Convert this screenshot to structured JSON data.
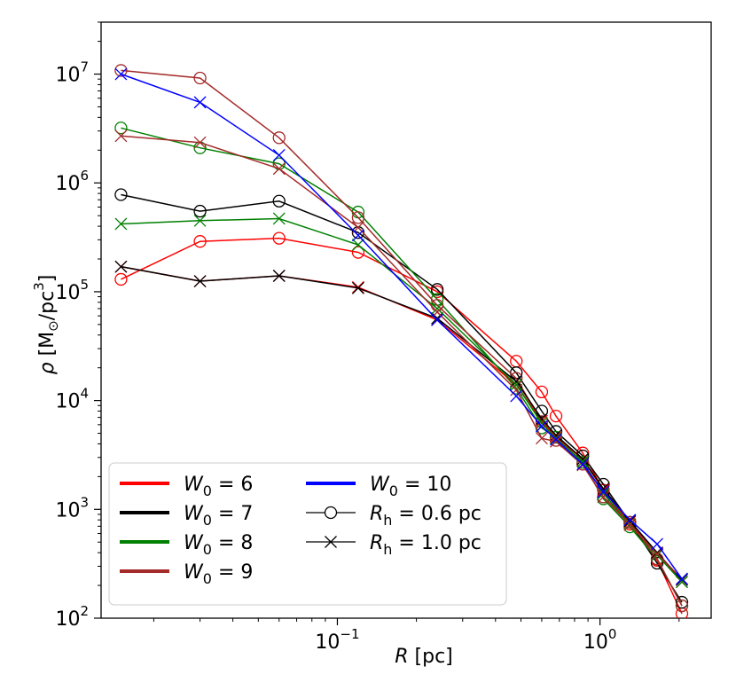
{
  "chart_data": {
    "type": "line",
    "xscale": "log",
    "yscale": "log",
    "xlim": [
      0.0126,
      2.65
    ],
    "ylim": [
      100,
      30000000
    ],
    "xlabel": {
      "sym": "R",
      "unit": "[pc]"
    },
    "ylabel": {
      "sym": "ρ",
      "unit_pre": "[M",
      "unit_sun": "⊙",
      "unit_mid": "/pc",
      "unit_exp": "3",
      "unit_post": "]"
    },
    "x_major_ticks": [
      {
        "value": 0.1,
        "base": "10",
        "exp": "−1"
      },
      {
        "value": 1,
        "base": "10",
        "exp": "0"
      }
    ],
    "y_major_ticks": [
      {
        "value": 100,
        "base": "10",
        "exp": "2"
      },
      {
        "value": 1000,
        "base": "10",
        "exp": "3"
      },
      {
        "value": 10000,
        "base": "10",
        "exp": "4"
      },
      {
        "value": 100000,
        "base": "10",
        "exp": "5"
      },
      {
        "value": 1000000,
        "base": "10",
        "exp": "6"
      },
      {
        "value": 10000000,
        "base": "10",
        "exp": "7"
      }
    ],
    "series": [
      {
        "name": "W0 = 6, Rh = 0.6 pc",
        "color": "#ff0000",
        "marker": "circle",
        "x": [
          0.015,
          0.03,
          0.06,
          0.12,
          0.24,
          0.48,
          0.6,
          0.68,
          0.86,
          1.03,
          1.3,
          1.65,
          2.05
        ],
        "y": [
          130000,
          290000,
          310000,
          230000,
          100000,
          23000,
          12000,
          7200,
          3300,
          1500,
          730,
          340,
          110
        ]
      },
      {
        "name": "W0 = 7, Rh = 0.6 pc",
        "color": "#000000",
        "marker": "circle",
        "x": [
          0.015,
          0.03,
          0.06,
          0.12,
          0.24,
          0.48,
          0.6,
          0.68,
          0.86,
          1.03,
          1.3,
          1.65,
          2.05
        ],
        "y": [
          780000,
          550000,
          680000,
          350000,
          105000,
          18000,
          8000,
          5200,
          3100,
          1700,
          760,
          320,
          140
        ]
      },
      {
        "name": "W0 = 8, Rh = 0.6 pc",
        "color": "#008000",
        "marker": "circle",
        "x": [
          0.015,
          0.03,
          0.06,
          0.12,
          0.24,
          0.48,
          0.6,
          0.68,
          0.86,
          1.03,
          1.3,
          1.65,
          2.05
        ],
        "y": [
          3200000,
          2100000,
          1500000,
          540000,
          85000,
          13000,
          5600,
          4600,
          2700,
          1250,
          690,
          350,
          130
        ]
      },
      {
        "name": "W0 = 9, Rh = 0.6 pc",
        "color": "#a52a2a",
        "marker": "circle",
        "x": [
          0.015,
          0.03,
          0.06,
          0.12,
          0.24,
          0.48,
          0.6,
          0.68,
          0.86,
          1.03,
          1.3,
          1.65,
          2.05
        ],
        "y": [
          10800000,
          9200000,
          2600000,
          480000,
          75000,
          16000,
          6400,
          4300,
          2600,
          1300,
          760,
          350,
          130
        ]
      },
      {
        "name": "W0 = 6, Rh = 1.0 pc",
        "color": "#ff0000",
        "marker": "x",
        "x": [
          0.015,
          0.03,
          0.06,
          0.12,
          0.24,
          0.48,
          0.6,
          0.68,
          0.86,
          1.03,
          1.3,
          1.65,
          2.05
        ],
        "y": [
          170000,
          125000,
          140000,
          110000,
          55000,
          14000,
          6500,
          4600,
          2900,
          1500,
          770,
          390,
          215
        ]
      },
      {
        "name": "W0 = 7, Rh = 1.0 pc",
        "color": "#000000",
        "marker": "x",
        "x": [
          0.015,
          0.03,
          0.06,
          0.12,
          0.24,
          0.48,
          0.6,
          0.68,
          0.86,
          1.03,
          1.3,
          1.65,
          2.05
        ],
        "y": [
          170000,
          125000,
          140000,
          108000,
          57000,
          15000,
          6800,
          4800,
          2900,
          1550,
          780,
          400,
          225
        ]
      },
      {
        "name": "W0 = 8, Rh = 1.0 pc",
        "color": "#008000",
        "marker": "x",
        "x": [
          0.015,
          0.03,
          0.06,
          0.12,
          0.24,
          0.48,
          0.6,
          0.68,
          0.86,
          1.03,
          1.3,
          1.65,
          2.05
        ],
        "y": [
          420000,
          450000,
          470000,
          270000,
          70000,
          14000,
          6200,
          4500,
          2750,
          1400,
          730,
          380,
          215
        ]
      },
      {
        "name": "W0 = 9, Rh = 1.0 pc",
        "color": "#a52a2a",
        "marker": "x",
        "x": [
          0.015,
          0.03,
          0.06,
          0.12,
          0.24,
          0.48,
          0.6,
          0.68,
          0.86,
          1.03,
          1.3,
          1.65,
          2.05
        ],
        "y": [
          2700000,
          2350000,
          1350000,
          390000,
          65000,
          12500,
          4500,
          4200,
          2550,
          1300,
          720,
          390,
          230
        ]
      },
      {
        "name": "W0 = 10, Rh = 1.0 pc",
        "color": "#0000ff",
        "marker": "x",
        "x": [
          0.015,
          0.03,
          0.06,
          0.12,
          0.24,
          0.48,
          0.6,
          0.68,
          0.86,
          1.03,
          1.3,
          1.65,
          2.05
        ],
        "y": [
          10000000,
          5500000,
          1800000,
          330000,
          55000,
          11000,
          5800,
          4400,
          2600,
          1450,
          800,
          480,
          230
        ]
      }
    ],
    "legend": {
      "placement": "bottom-left",
      "color_entries": [
        {
          "label_pre": "W",
          "label_sub": "0",
          "label_post": " = 6",
          "color": "#ff0000"
        },
        {
          "label_pre": "W",
          "label_sub": "0",
          "label_post": " = 7",
          "color": "#000000"
        },
        {
          "label_pre": "W",
          "label_sub": "0",
          "label_post": " = 8",
          "color": "#008000"
        },
        {
          "label_pre": "W",
          "label_sub": "0",
          "label_post": " = 9",
          "color": "#a52a2a"
        },
        {
          "label_pre": "W",
          "label_sub": "0",
          "label_post": " = 10",
          "color": "#0000ff"
        }
      ],
      "marker_entries": [
        {
          "label_pre": "R",
          "label_sub": "h",
          "label_post": " = 0.6 pc",
          "marker": "circle"
        },
        {
          "label_pre": "R",
          "label_sub": "h",
          "label_post": " = 1.0 pc",
          "marker": "x"
        }
      ]
    }
  }
}
